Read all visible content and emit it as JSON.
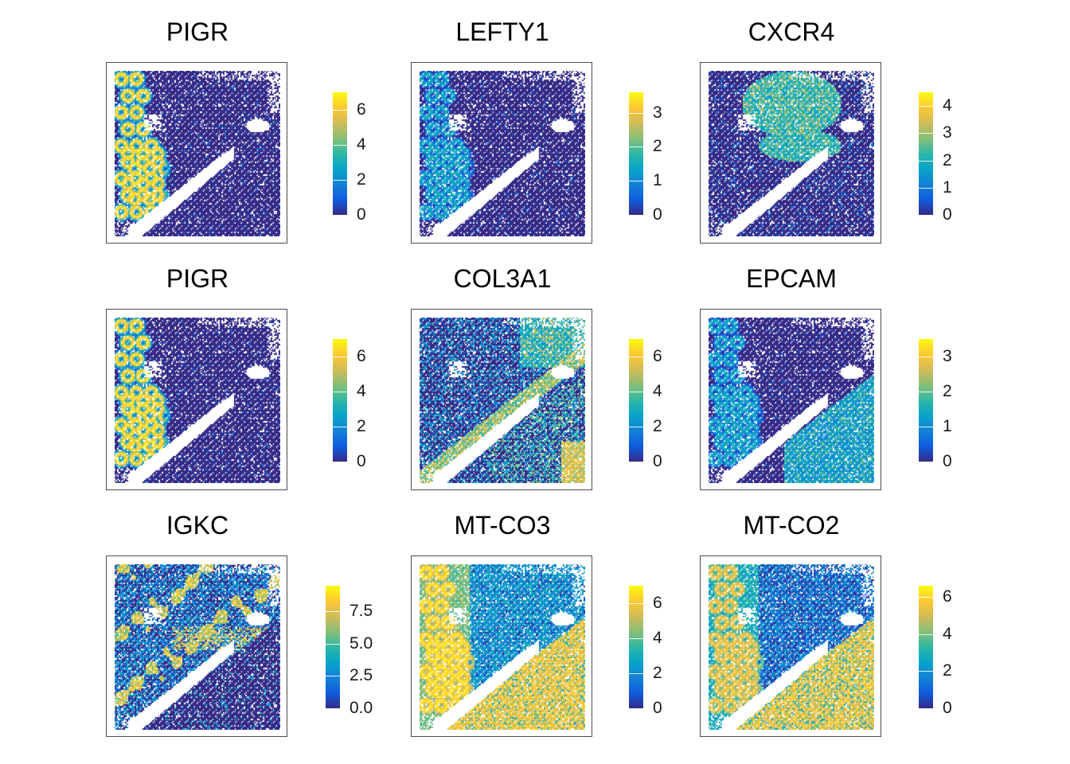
{
  "figure": {
    "type": "spatial-feature-plot-grid",
    "rows": 3,
    "cols": 3
  },
  "colorscale": [
    "#352a87",
    "#0f5cdd",
    "#1481d6",
    "#06a4ca",
    "#2eb7a4",
    "#87bf77",
    "#d1bb59",
    "#fec832",
    "#f9fb0e"
  ],
  "chart_data": [
    {
      "type": "heatmap",
      "title": "PIGR",
      "legend_range": [
        0,
        7
      ],
      "ticks": [
        0,
        2,
        4,
        6
      ],
      "tick_labels": [
        "0",
        "2",
        "4",
        "6"
      ],
      "pattern": "glands-left",
      "legend": "right"
    },
    {
      "type": "heatmap",
      "title": "LEFTY1",
      "legend_range": [
        0,
        3.6
      ],
      "ticks": [
        0,
        1,
        2,
        3
      ],
      "tick_labels": [
        "0",
        "1",
        "2",
        "3"
      ],
      "pattern": "glands-left-weak",
      "legend": "right"
    },
    {
      "type": "heatmap",
      "title": "CXCR4",
      "legend_range": [
        0,
        4.5
      ],
      "ticks": [
        0,
        1,
        2,
        3,
        4
      ],
      "tick_labels": [
        "0",
        "1",
        "2",
        "3",
        "4"
      ],
      "pattern": "follicle-top",
      "legend": "right"
    },
    {
      "type": "heatmap",
      "title": "PIGR",
      "legend_range": [
        0,
        7
      ],
      "ticks": [
        0,
        2,
        4,
        6
      ],
      "tick_labels": [
        "0",
        "2",
        "4",
        "6"
      ],
      "pattern": "glands-left",
      "legend": "right"
    },
    {
      "type": "heatmap",
      "title": "COL3A1",
      "legend_range": [
        0,
        7
      ],
      "ticks": [
        0,
        2,
        4,
        6
      ],
      "tick_labels": [
        "0",
        "2",
        "4",
        "6"
      ],
      "pattern": "stroma-band",
      "legend": "right"
    },
    {
      "type": "heatmap",
      "title": "EPCAM",
      "legend_range": [
        0,
        3.5
      ],
      "ticks": [
        0,
        1,
        2,
        3
      ],
      "tick_labels": [
        "0",
        "1",
        "2",
        "3"
      ],
      "pattern": "glands-left-and-bottom",
      "legend": "right"
    },
    {
      "type": "heatmap",
      "title": "IGKC",
      "legend_range": [
        0,
        9.5
      ],
      "ticks": [
        0,
        2.5,
        5.0,
        7.5
      ],
      "tick_labels": [
        "0.0",
        "2.5",
        "5.0",
        "7.5"
      ],
      "pattern": "scattered-upper",
      "legend": "right"
    },
    {
      "type": "heatmap",
      "title": "MT-CO3",
      "legend_range": [
        0,
        7
      ],
      "ticks": [
        0,
        2,
        4,
        6
      ],
      "tick_labels": [
        "0",
        "2",
        "4",
        "6"
      ],
      "pattern": "high-everywhere",
      "legend": "right"
    },
    {
      "type": "heatmap",
      "title": "MT-CO2",
      "legend_range": [
        0,
        6.6
      ],
      "ticks": [
        0,
        2,
        4,
        6
      ],
      "tick_labels": [
        "0",
        "2",
        "4",
        "6"
      ],
      "pattern": "high-bottom",
      "legend": "right"
    }
  ]
}
